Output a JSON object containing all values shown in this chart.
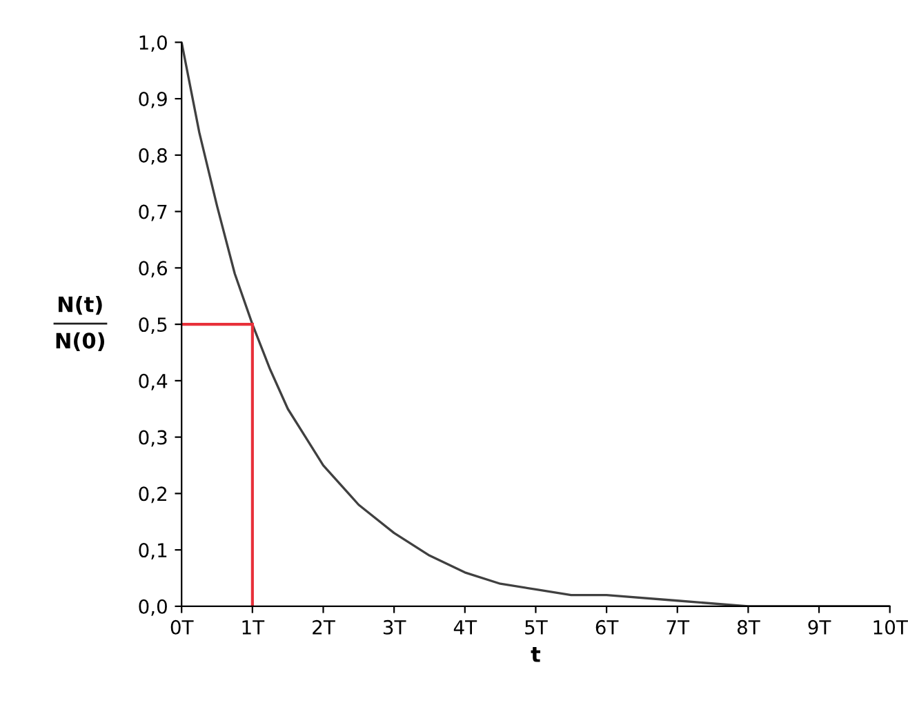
{
  "chart_data": {
    "type": "line",
    "xlabel": "t",
    "ylabel": "N(t)\nN(0)",
    "xlim": [
      0,
      10
    ],
    "ylim": [
      0,
      1
    ],
    "xticks": [
      {
        "value": 0,
        "label": "0T"
      },
      {
        "value": 1,
        "label": "1T"
      },
      {
        "value": 2,
        "label": "2T"
      },
      {
        "value": 3,
        "label": "3T"
      },
      {
        "value": 4,
        "label": "4T"
      },
      {
        "value": 5,
        "label": "5T"
      },
      {
        "value": 6,
        "label": "6T"
      },
      {
        "value": 7,
        "label": "7T"
      },
      {
        "value": 8,
        "label": "8T"
      },
      {
        "value": 9,
        "label": "9T"
      },
      {
        "value": 10,
        "label": "10T"
      }
    ],
    "yticks": [
      {
        "value": 0,
        "label": "0,0"
      },
      {
        "value": 0.1,
        "label": "0,1"
      },
      {
        "value": 0.2,
        "label": "0,2"
      },
      {
        "value": 0.3,
        "label": "0,3"
      },
      {
        "value": 0.4,
        "label": "0,4"
      },
      {
        "value": 0.5,
        "label": "0,5"
      },
      {
        "value": 0.6,
        "label": "0,6"
      },
      {
        "value": 0.7,
        "label": "0,7"
      },
      {
        "value": 0.8,
        "label": "0,8"
      },
      {
        "value": 0.9,
        "label": "0,9"
      },
      {
        "value": 1,
        "label": "1,0"
      }
    ],
    "grid": false,
    "marker": "none",
    "line_style": "solid",
    "series": [
      {
        "color": "#404040",
        "x": [
          0,
          0.25,
          0.5,
          0.75,
          1,
          1.25,
          1.5,
          1.75,
          2,
          2.5,
          3,
          3.5,
          4,
          4.5,
          5,
          5.5,
          6,
          7,
          8,
          9,
          10
        ],
        "values": [
          1.0,
          0.84,
          0.71,
          0.59,
          0.5,
          0.42,
          0.35,
          0.3,
          0.25,
          0.18,
          0.13,
          0.09,
          0.06,
          0.04,
          0.03,
          0.02,
          0.02,
          0.01,
          0,
          0,
          0
        ]
      },
      {
        "color": "#e8303a",
        "x": [
          0,
          1
        ],
        "values": [
          0.5,
          0.5
        ]
      },
      {
        "color": "#e8303a",
        "x": [
          1,
          1
        ],
        "values": [
          0,
          0.5
        ]
      }
    ]
  }
}
